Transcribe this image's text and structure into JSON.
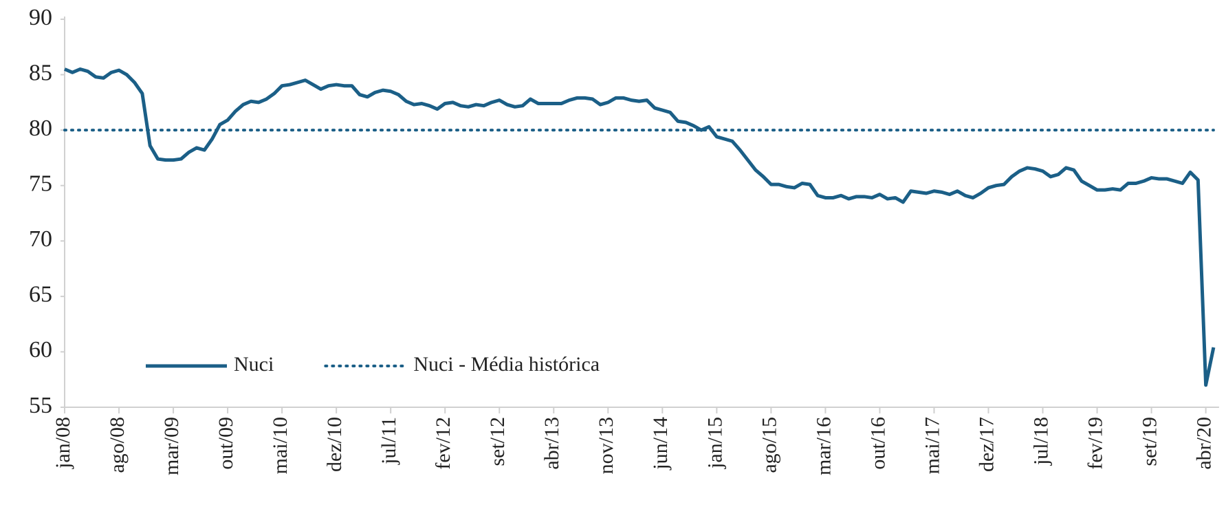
{
  "chart_data": {
    "type": "line",
    "categories": [
      "jan/08",
      null,
      null,
      null,
      null,
      null,
      null,
      "ago/08",
      null,
      null,
      null,
      null,
      null,
      null,
      "mar/09",
      null,
      null,
      null,
      null,
      null,
      null,
      "out/09",
      null,
      null,
      null,
      null,
      null,
      null,
      "mai/10",
      null,
      null,
      null,
      null,
      null,
      null,
      "dez/10",
      null,
      null,
      null,
      null,
      null,
      null,
      "jul/11",
      null,
      null,
      null,
      null,
      null,
      null,
      "fev/12",
      null,
      null,
      null,
      null,
      null,
      null,
      "set/12",
      null,
      null,
      null,
      null,
      null,
      null,
      "abr/13",
      null,
      null,
      null,
      null,
      null,
      null,
      "nov/13",
      null,
      null,
      null,
      null,
      null,
      null,
      "jun/14",
      null,
      null,
      null,
      null,
      null,
      null,
      "jan/15",
      null,
      null,
      null,
      null,
      null,
      null,
      "ago/15",
      null,
      null,
      null,
      null,
      null,
      null,
      "mar/16",
      null,
      null,
      null,
      null,
      null,
      null,
      "out/16",
      null,
      null,
      null,
      null,
      null,
      null,
      "mai/17",
      null,
      null,
      null,
      null,
      null,
      null,
      "dez/17",
      null,
      null,
      null,
      null,
      null,
      null,
      "jul/18",
      null,
      null,
      null,
      null,
      null,
      null,
      "fev/19",
      null,
      null,
      null,
      null,
      null,
      null,
      "set/19",
      null,
      null,
      null,
      null,
      null,
      null,
      "abr/20",
      null
    ],
    "series": [
      {
        "name": "Nuci",
        "color": "#1b5f87",
        "style": "solid",
        "values": [
          85.5,
          85.2,
          85.5,
          85.3,
          84.8,
          84.7,
          85.2,
          85.4,
          85.0,
          84.3,
          83.3,
          78.6,
          77.4,
          77.3,
          77.3,
          77.4,
          78.0,
          78.4,
          78.2,
          79.2,
          80.5,
          80.9,
          81.7,
          82.3,
          82.6,
          82.5,
          82.8,
          83.3,
          84.0,
          84.1,
          84.3,
          84.5,
          84.1,
          83.7,
          84.0,
          84.1,
          84.0,
          84.0,
          83.2,
          83.0,
          83.4,
          83.6,
          83.5,
          83.2,
          82.6,
          82.3,
          82.4,
          82.2,
          81.9,
          82.4,
          82.5,
          82.2,
          82.1,
          82.3,
          82.2,
          82.5,
          82.7,
          82.3,
          82.1,
          82.2,
          82.8,
          82.4,
          82.4,
          82.4,
          82.4,
          82.7,
          82.9,
          82.9,
          82.8,
          82.3,
          82.5,
          82.9,
          82.9,
          82.7,
          82.6,
          82.7,
          82.0,
          81.8,
          81.6,
          80.8,
          80.7,
          80.4,
          80.0,
          80.3,
          79.4,
          79.2,
          79.0,
          78.2,
          77.3,
          76.4,
          75.8,
          75.1,
          75.1,
          74.9,
          74.8,
          75.2,
          75.1,
          74.1,
          73.9,
          73.9,
          74.1,
          73.8,
          74.0,
          74.0,
          73.9,
          74.2,
          73.8,
          73.9,
          73.5,
          74.5,
          74.4,
          74.3,
          74.5,
          74.4,
          74.2,
          74.5,
          74.1,
          73.9,
          74.3,
          74.8,
          75.0,
          75.1,
          75.8,
          76.3,
          76.6,
          76.5,
          76.3,
          75.8,
          76.0,
          76.6,
          76.4,
          75.4,
          75.0,
          74.6,
          74.6,
          74.7,
          74.6,
          75.2,
          75.2,
          75.4,
          75.7,
          75.6,
          75.6,
          75.4,
          75.2,
          76.2,
          75.5,
          57.0,
          60.4
        ]
      },
      {
        "name": "Nuci - Média histórica",
        "color": "#1b5f87",
        "style": "dotted",
        "value": 80
      }
    ],
    "ylim": [
      55,
      90
    ],
    "yticks": [
      55,
      60,
      65,
      70,
      75,
      80,
      85,
      90
    ],
    "legend": "lower left"
  }
}
